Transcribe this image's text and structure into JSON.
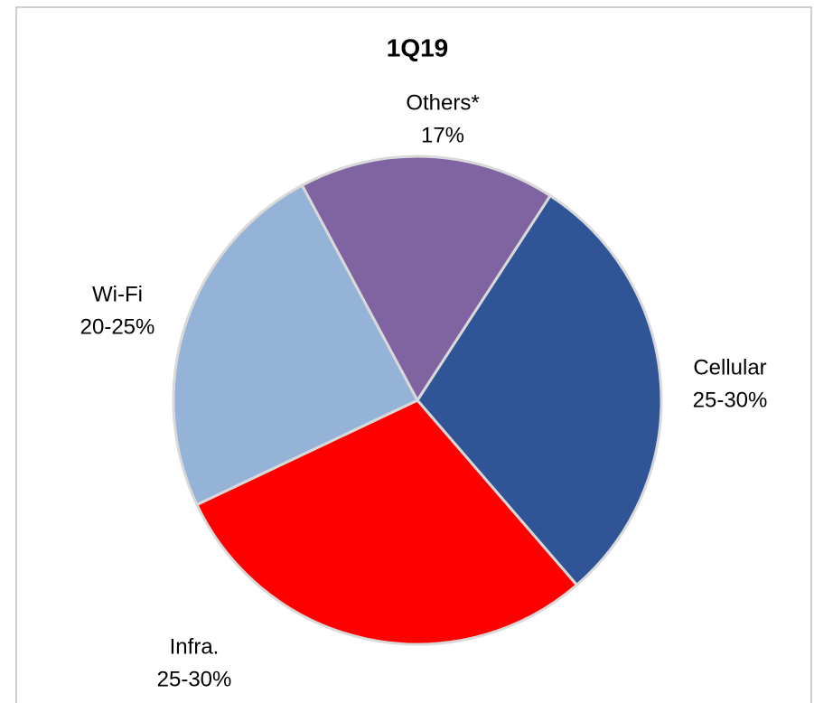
{
  "chart_data": {
    "type": "pie",
    "title": "1Q19",
    "categories": [
      "Cellular",
      "Infra.",
      "Wi-Fi",
      "Others*"
    ],
    "values": [
      29.5,
      29.3,
      24.2,
      17
    ],
    "value_labels": [
      "25-30%",
      "25-30%",
      "20-25%",
      "17%"
    ],
    "colors": [
      "#2f5597",
      "#ff0000",
      "#95b3d7",
      "#8064a2"
    ]
  }
}
